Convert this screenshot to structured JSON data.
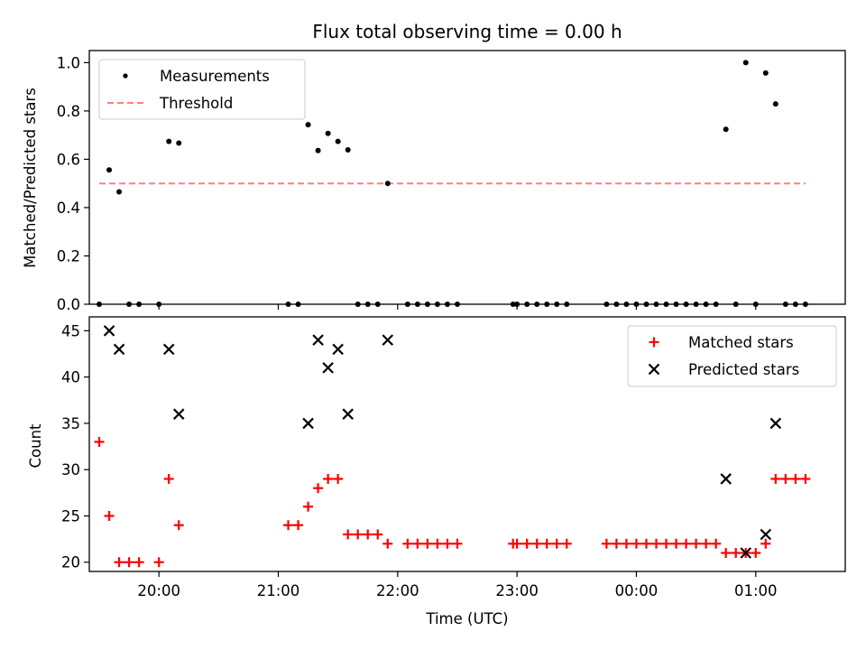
{
  "chart_data": [
    {
      "type": "scatter",
      "title": "Flux total observing time = 0.00 h",
      "xlabel": "",
      "ylabel": "Matched/Predicted stars",
      "ylim": [
        0,
        1.05
      ],
      "yticks": [
        "0.0",
        "0.2",
        "0.4",
        "0.6",
        "0.8",
        "1.0"
      ],
      "ytick_values": [
        0,
        0.2,
        0.4,
        0.6,
        0.8,
        1.0
      ],
      "xlim": [
        "19:25",
        "01:45"
      ],
      "grid": false,
      "legend_position": "top-left",
      "series": [
        {
          "name": "Measurements",
          "kind": "points",
          "color": "#000000",
          "points": [
            [
              "19:30",
              0.0
            ],
            [
              "19:35",
              0.556
            ],
            [
              "19:40",
              0.465
            ],
            [
              "19:45",
              0.0
            ],
            [
              "19:50",
              0.0
            ],
            [
              "20:00",
              0.0
            ],
            [
              "20:05",
              0.674
            ],
            [
              "20:10",
              0.667
            ],
            [
              "21:05",
              0.0
            ],
            [
              "21:10",
              0.0
            ],
            [
              "21:15",
              0.743
            ],
            [
              "21:20",
              0.636
            ],
            [
              "21:25",
              0.707
            ],
            [
              "21:30",
              0.674
            ],
            [
              "21:35",
              0.639
            ],
            [
              "21:40",
              0.0
            ],
            [
              "21:45",
              0.0
            ],
            [
              "21:50",
              0.0
            ],
            [
              "21:55",
              0.5
            ],
            [
              "22:05",
              0.0
            ],
            [
              "22:10",
              0.0
            ],
            [
              "22:15",
              0.0
            ],
            [
              "22:20",
              0.0
            ],
            [
              "22:25",
              0.0
            ],
            [
              "22:30",
              0.0
            ],
            [
              "22:58",
              0.0
            ],
            [
              "23:00",
              0.0
            ],
            [
              "23:05",
              0.0
            ],
            [
              "23:10",
              0.0
            ],
            [
              "23:15",
              0.0
            ],
            [
              "23:20",
              0.0
            ],
            [
              "23:25",
              0.0
            ],
            [
              "23:45",
              0.0
            ],
            [
              "23:50",
              0.0
            ],
            [
              "23:55",
              0.0
            ],
            [
              "00:00",
              0.0
            ],
            [
              "00:05",
              0.0
            ],
            [
              "00:10",
              0.0
            ],
            [
              "00:15",
              0.0
            ],
            [
              "00:20",
              0.0
            ],
            [
              "00:25",
              0.0
            ],
            [
              "00:30",
              0.0
            ],
            [
              "00:35",
              0.0
            ],
            [
              "00:40",
              0.0
            ],
            [
              "00:45",
              0.724
            ],
            [
              "00:50",
              0.0
            ],
            [
              "00:55",
              1.0
            ],
            [
              "01:00",
              0.0
            ],
            [
              "01:05",
              0.957
            ],
            [
              "01:10",
              0.829
            ],
            [
              "01:15",
              0.0
            ],
            [
              "01:20",
              0.0
            ],
            [
              "01:25",
              0.0
            ]
          ]
        },
        {
          "name": "Threshold",
          "kind": "dashed-line",
          "color": "#ff7f7f",
          "points": [
            [
              "19:30",
              0.5
            ],
            [
              "01:25",
              0.5
            ]
          ]
        }
      ]
    },
    {
      "type": "scatter",
      "title": "",
      "xlabel": "Time (UTC)",
      "ylabel": "Count",
      "ylim": [
        19,
        46.5
      ],
      "yticks": [
        "20",
        "25",
        "30",
        "35",
        "40",
        "45"
      ],
      "ytick_values": [
        20,
        25,
        30,
        35,
        40,
        45
      ],
      "xlim": [
        "19:25",
        "01:45"
      ],
      "xticks": [
        "20:00",
        "21:00",
        "22:00",
        "23:00",
        "00:00",
        "01:00"
      ],
      "grid": false,
      "legend_position": "top-right",
      "series": [
        {
          "name": "Matched stars",
          "marker": "plus",
          "color": "#ff0000",
          "points": [
            [
              "19:30",
              33
            ],
            [
              "19:35",
              25
            ],
            [
              "19:40",
              20
            ],
            [
              "19:45",
              20
            ],
            [
              "19:50",
              20
            ],
            [
              "20:00",
              20
            ],
            [
              "20:05",
              29
            ],
            [
              "20:10",
              24
            ],
            [
              "21:05",
              24
            ],
            [
              "21:10",
              24
            ],
            [
              "21:15",
              26
            ],
            [
              "21:20",
              28
            ],
            [
              "21:25",
              29
            ],
            [
              "21:30",
              29
            ],
            [
              "21:35",
              23
            ],
            [
              "21:40",
              23
            ],
            [
              "21:45",
              23
            ],
            [
              "21:50",
              23
            ],
            [
              "21:55",
              22
            ],
            [
              "22:05",
              22
            ],
            [
              "22:10",
              22
            ],
            [
              "22:15",
              22
            ],
            [
              "22:20",
              22
            ],
            [
              "22:25",
              22
            ],
            [
              "22:30",
              22
            ],
            [
              "22:58",
              22
            ],
            [
              "23:00",
              22
            ],
            [
              "23:05",
              22
            ],
            [
              "23:10",
              22
            ],
            [
              "23:15",
              22
            ],
            [
              "23:20",
              22
            ],
            [
              "23:25",
              22
            ],
            [
              "23:45",
              22
            ],
            [
              "23:50",
              22
            ],
            [
              "23:55",
              22
            ],
            [
              "00:00",
              22
            ],
            [
              "00:05",
              22
            ],
            [
              "00:10",
              22
            ],
            [
              "00:15",
              22
            ],
            [
              "00:20",
              22
            ],
            [
              "00:25",
              22
            ],
            [
              "00:30",
              22
            ],
            [
              "00:35",
              22
            ],
            [
              "00:40",
              22
            ],
            [
              "00:45",
              21
            ],
            [
              "00:50",
              21
            ],
            [
              "00:55",
              21
            ],
            [
              "01:00",
              21
            ],
            [
              "01:05",
              22
            ],
            [
              "01:10",
              29
            ],
            [
              "01:15",
              29
            ],
            [
              "01:20",
              29
            ],
            [
              "01:25",
              29
            ]
          ]
        },
        {
          "name": "Predicted stars",
          "marker": "x",
          "color": "#000000",
          "points": [
            [
              "19:35",
              45
            ],
            [
              "19:40",
              43
            ],
            [
              "20:05",
              43
            ],
            [
              "20:10",
              36
            ],
            [
              "21:15",
              35
            ],
            [
              "21:20",
              44
            ],
            [
              "21:25",
              41
            ],
            [
              "21:30",
              43
            ],
            [
              "21:35",
              36
            ],
            [
              "21:55",
              44
            ],
            [
              "00:45",
              29
            ],
            [
              "00:55",
              21
            ],
            [
              "01:05",
              23
            ],
            [
              "01:10",
              35
            ]
          ]
        }
      ]
    }
  ]
}
